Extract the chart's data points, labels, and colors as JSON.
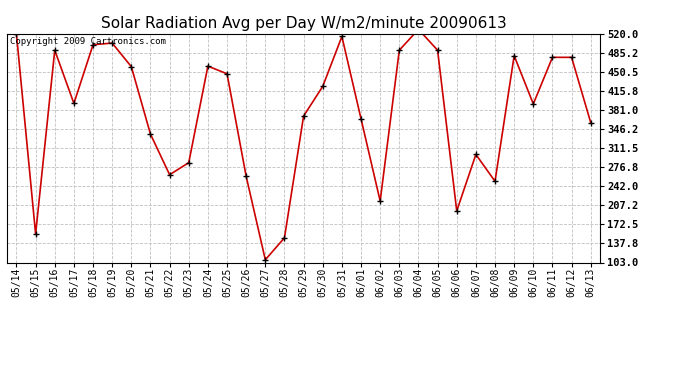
{
  "title": "Solar Radiation Avg per Day W/m2/minute 20090613",
  "copyright": "Copyright 2009 Cartronics.com",
  "x_labels": [
    "05/14",
    "05/15",
    "05/16",
    "05/17",
    "05/18",
    "05/19",
    "05/20",
    "05/21",
    "05/22",
    "05/23",
    "05/24",
    "05/25",
    "05/26",
    "05/27",
    "05/28",
    "05/29",
    "05/30",
    "05/31",
    "06/01",
    "06/02",
    "06/03",
    "06/04",
    "06/05",
    "06/06",
    "06/07",
    "06/08",
    "06/09",
    "06/10",
    "06/11",
    "06/12",
    "06/13"
  ],
  "y_values": [
    519.0,
    155.0,
    490.0,
    393.0,
    500.0,
    503.0,
    460.0,
    337.0,
    263.0,
    285.0,
    461.0,
    447.0,
    260.0,
    108.0,
    148.0,
    370.0,
    424.0,
    515.0,
    365.0,
    215.0,
    490.0,
    528.0,
    490.0,
    197.0,
    300.0,
    251.0,
    480.0,
    392.0,
    477.0,
    477.0,
    358.0
  ],
  "y_ticks": [
    103.0,
    137.8,
    172.5,
    207.2,
    242.0,
    276.8,
    311.5,
    346.2,
    381.0,
    415.8,
    450.5,
    485.2,
    520.0
  ],
  "y_tick_labels": [
    "103.0",
    "137.8",
    "172.5",
    "207.2",
    "242.0",
    "276.8",
    "311.5",
    "346.2",
    "381.0",
    "415.8",
    "450.5",
    "485.2",
    "520.0"
  ],
  "y_min": 103.0,
  "y_max": 520.0,
  "line_color": "#cc0000",
  "marker": "+",
  "marker_color": "#000000",
  "bg_color": "#ffffff",
  "grid_color": "#c0c0c0",
  "title_fontsize": 11,
  "copyright_fontsize": 6.5,
  "tick_fontsize": 7,
  "ytick_fontsize": 7.5
}
